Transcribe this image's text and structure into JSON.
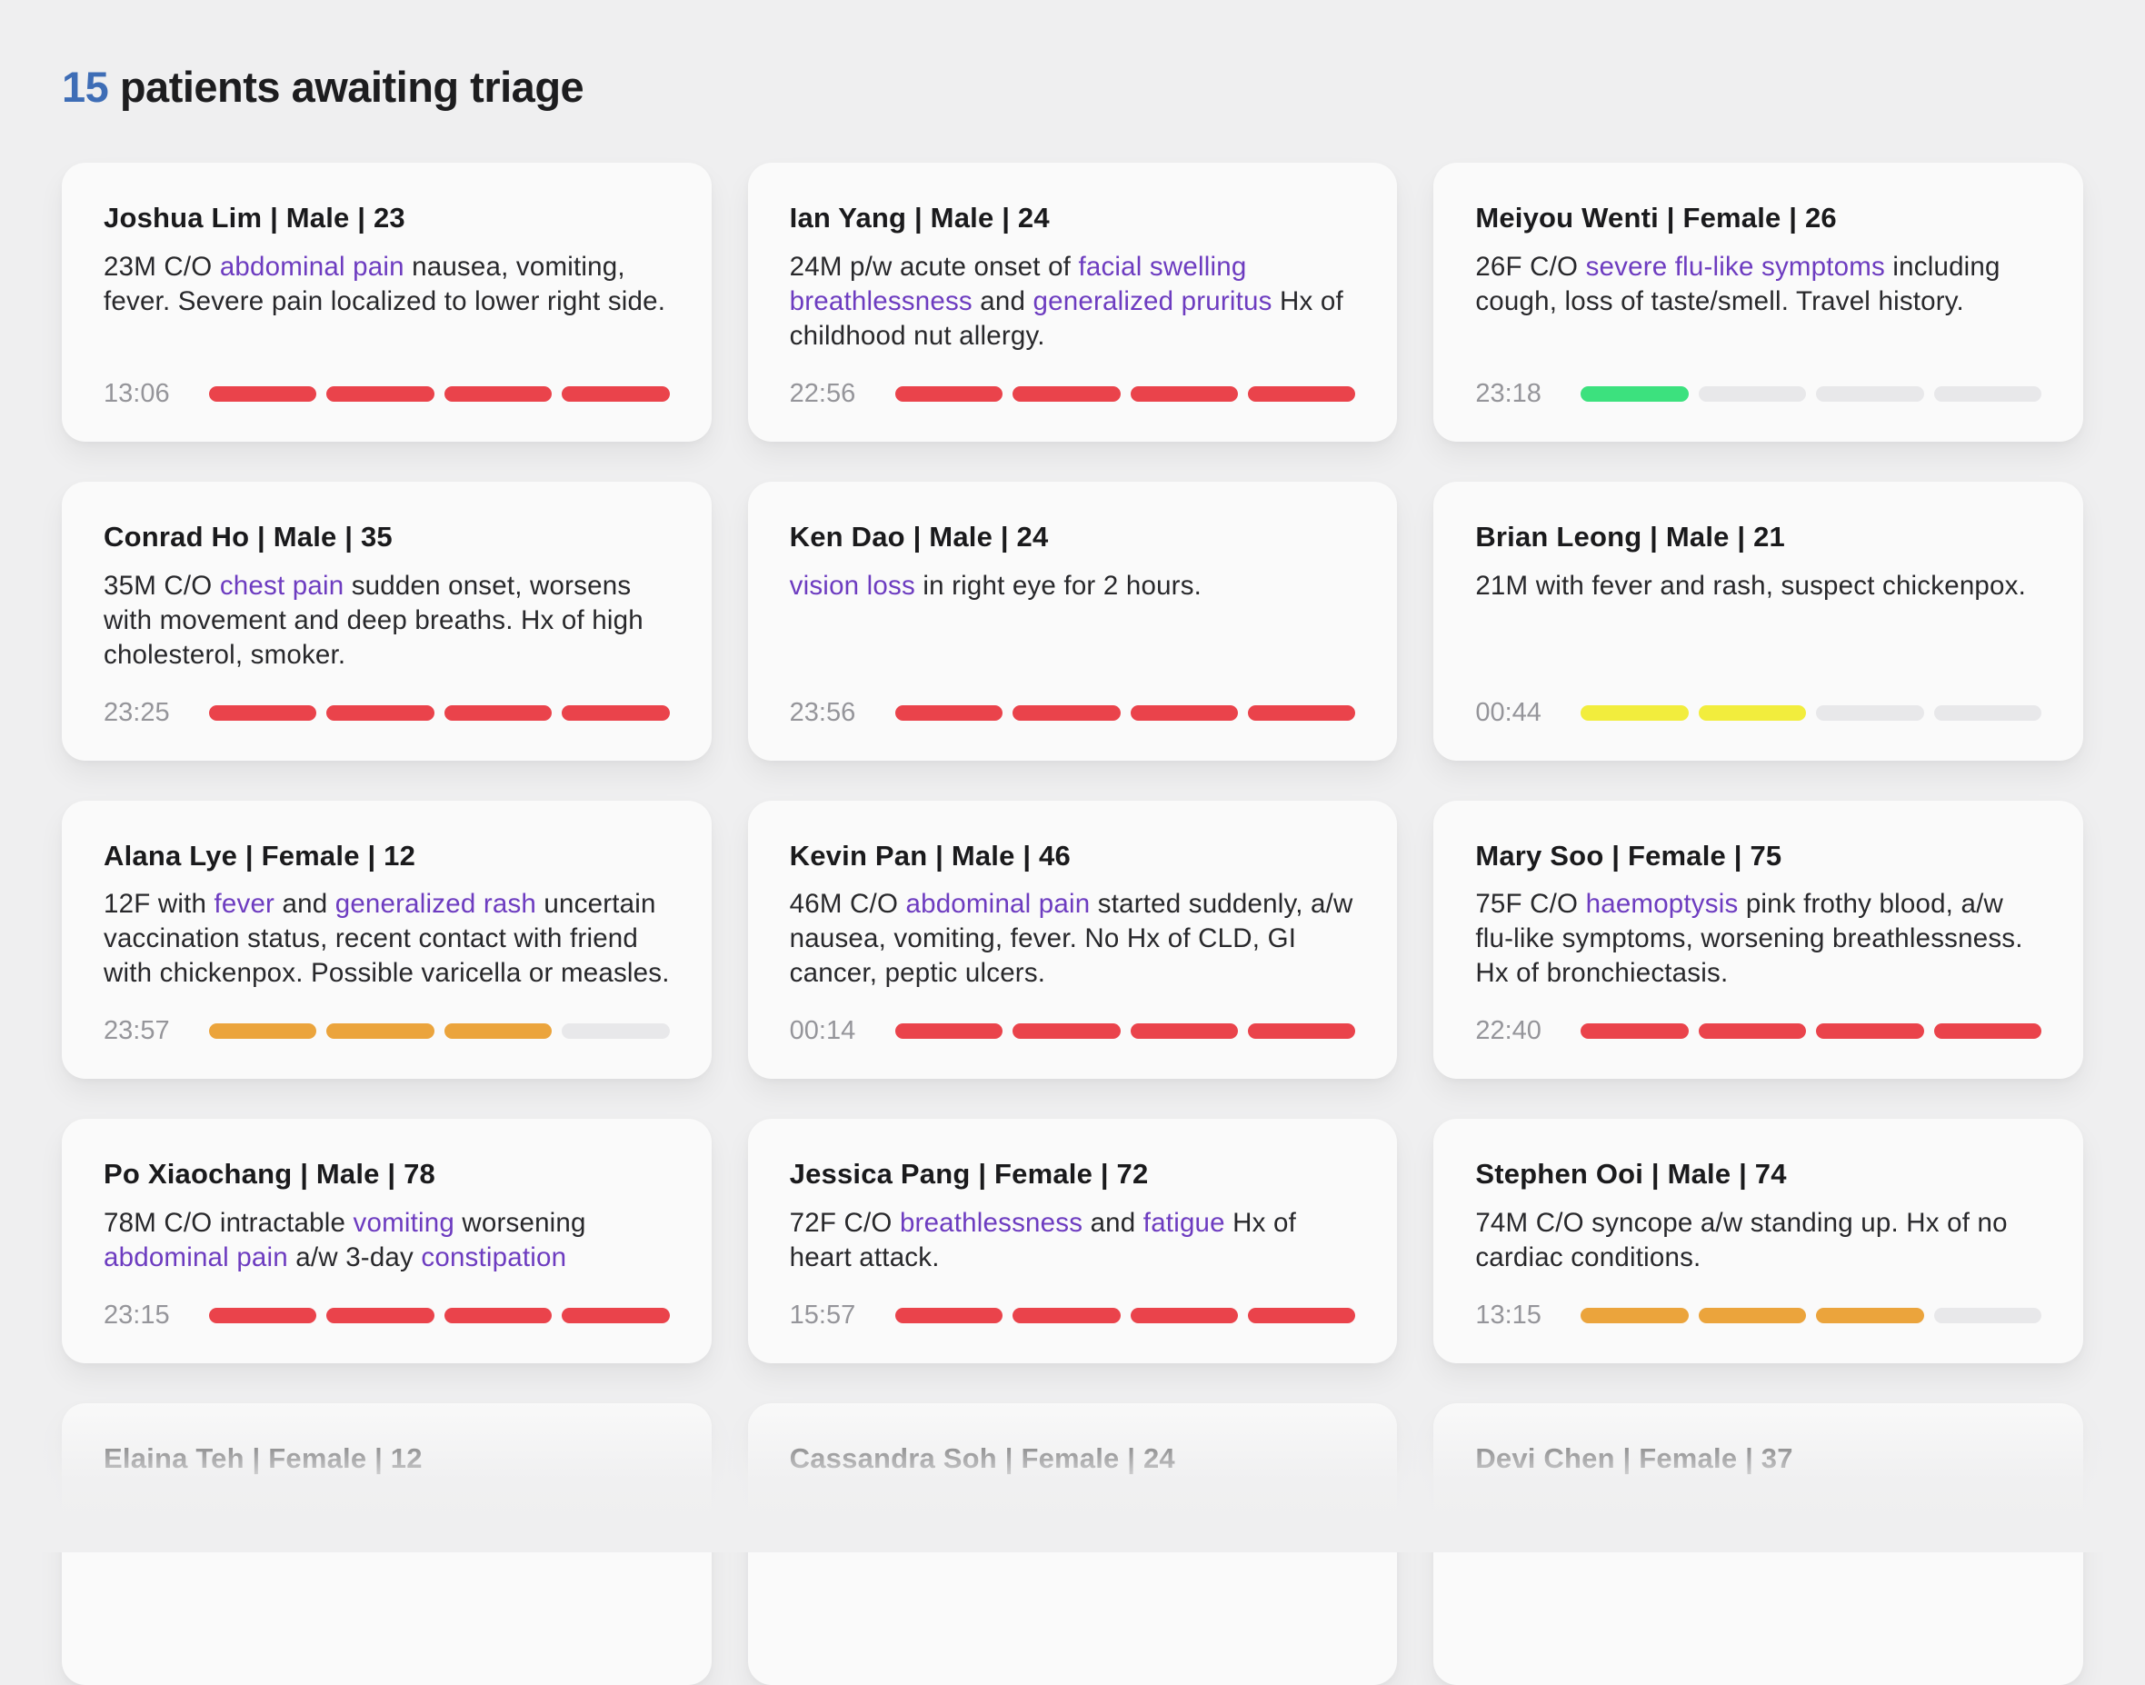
{
  "header": {
    "count": "15",
    "title_rest": " patients awaiting triage"
  },
  "colors": {
    "accent_blue": "#3e6db6",
    "link_purple": "#6d3cc0",
    "severity_red": "#ea434b",
    "severity_green": "#3ce17e",
    "severity_yellow": "#f2ed3d",
    "severity_orange": "#eba43c",
    "severity_empty": "#e8e8ea",
    "page_background": "#efeff0",
    "card_background": "#fafafa"
  },
  "patients": [
    {
      "name": "Joshua Lim | Male | 23",
      "segments": [
        {
          "t": "23M C/O ",
          "link": false
        },
        {
          "t": "abdominal pain",
          "link": true
        },
        {
          "t": " nausea, vomiting, fever. Severe pain localized to lower right side.",
          "link": false
        }
      ],
      "time": "13:06",
      "bars": [
        "red",
        "red",
        "red",
        "red"
      ]
    },
    {
      "name": "Ian Yang | Male | 24",
      "segments": [
        {
          "t": "24M p/w acute onset of ",
          "link": false
        },
        {
          "t": "facial swelling breathlessness",
          "link": true
        },
        {
          "t": " and ",
          "link": false
        },
        {
          "t": "generalized pruritus",
          "link": true
        },
        {
          "t": " Hx of childhood nut allergy.",
          "link": false
        }
      ],
      "time": "22:56",
      "bars": [
        "red",
        "red",
        "red",
        "red"
      ]
    },
    {
      "name": "Meiyou Wenti | Female | 26",
      "segments": [
        {
          "t": "26F C/O ",
          "link": false
        },
        {
          "t": "severe flu-like symptoms",
          "link": true
        },
        {
          "t": " including cough, loss of taste/smell. Travel history.",
          "link": false
        }
      ],
      "time": "23:18",
      "bars": [
        "green",
        "empty",
        "empty",
        "empty"
      ]
    },
    {
      "name": "Conrad Ho | Male | 35",
      "segments": [
        {
          "t": "35M C/O ",
          "link": false
        },
        {
          "t": "chest pain",
          "link": true
        },
        {
          "t": " sudden onset, worsens with movement and deep breaths. Hx of high cholesterol, smoker.",
          "link": false
        }
      ],
      "time": "23:25",
      "bars": [
        "red",
        "red",
        "red",
        "red"
      ]
    },
    {
      "name": "Ken Dao | Male | 24",
      "segments": [
        {
          "t": "vision loss",
          "link": true
        },
        {
          "t": " in right eye for 2 hours.",
          "link": false
        }
      ],
      "time": "23:56",
      "bars": [
        "red",
        "red",
        "red",
        "red"
      ]
    },
    {
      "name": "Brian Leong | Male | 21",
      "segments": [
        {
          "t": "21M with fever and rash, suspect chickenpox.",
          "link": false
        }
      ],
      "time": "00:44",
      "bars": [
        "yellow",
        "yellow",
        "empty",
        "empty"
      ]
    },
    {
      "name": "Alana Lye | Female | 12",
      "segments": [
        {
          "t": "12F with ",
          "link": false
        },
        {
          "t": "fever",
          "link": true
        },
        {
          "t": " and ",
          "link": false
        },
        {
          "t": "generalized rash",
          "link": true
        },
        {
          "t": " uncertain vaccination status, recent contact with friend with chickenpox. Possible varicella or measles.",
          "link": false
        }
      ],
      "time": "23:57",
      "bars": [
        "orange",
        "orange",
        "orange",
        "empty"
      ]
    },
    {
      "name": "Kevin Pan | Male | 46",
      "segments": [
        {
          "t": "46M C/O ",
          "link": false
        },
        {
          "t": "abdominal pain",
          "link": true
        },
        {
          "t": " started suddenly, a/w nausea, vomiting, fever. No Hx of CLD, GI cancer, peptic ulcers.",
          "link": false
        }
      ],
      "time": "00:14",
      "bars": [
        "red",
        "red",
        "red",
        "red"
      ]
    },
    {
      "name": "Mary Soo | Female | 75",
      "segments": [
        {
          "t": "75F C/O ",
          "link": false
        },
        {
          "t": "haemoptysis",
          "link": true
        },
        {
          "t": " pink frothy blood, a/w flu-like symptoms, worsening breathlessness. Hx of bronchiectasis.",
          "link": false
        }
      ],
      "time": "22:40",
      "bars": [
        "red",
        "red",
        "red",
        "red"
      ]
    },
    {
      "name": "Po Xiaochang | Male | 78",
      "segments": [
        {
          "t": "78M C/O intractable ",
          "link": false
        },
        {
          "t": "vomiting",
          "link": true
        },
        {
          "t": " worsening ",
          "link": false
        },
        {
          "t": "abdominal pain",
          "link": true
        },
        {
          "t": " a/w 3-day ",
          "link": false
        },
        {
          "t": "constipation",
          "link": true
        }
      ],
      "time": "23:15",
      "bars": [
        "red",
        "red",
        "red",
        "red"
      ]
    },
    {
      "name": "Jessica Pang | Female | 72",
      "segments": [
        {
          "t": "72F C/O ",
          "link": false
        },
        {
          "t": "breathlessness",
          "link": true
        },
        {
          "t": " and ",
          "link": false
        },
        {
          "t": "fatigue",
          "link": true
        },
        {
          "t": " Hx of heart attack.",
          "link": false
        }
      ],
      "time": "15:57",
      "bars": [
        "red",
        "red",
        "red",
        "red"
      ]
    },
    {
      "name": "Stephen Ooi | Male | 74",
      "segments": [
        {
          "t": "74M C/O syncope a/w standing up. Hx of no cardiac conditions.",
          "link": false
        }
      ],
      "time": "13:15",
      "bars": [
        "orange",
        "orange",
        "orange",
        "empty"
      ]
    },
    {
      "name": "Elaina Teh | Female | 12",
      "segments": [],
      "time": null,
      "bars": []
    },
    {
      "name": "Cassandra Soh | Female | 24",
      "segments": [],
      "time": null,
      "bars": []
    },
    {
      "name": "Devi Chen | Female | 37",
      "segments": [],
      "time": null,
      "bars": []
    }
  ]
}
